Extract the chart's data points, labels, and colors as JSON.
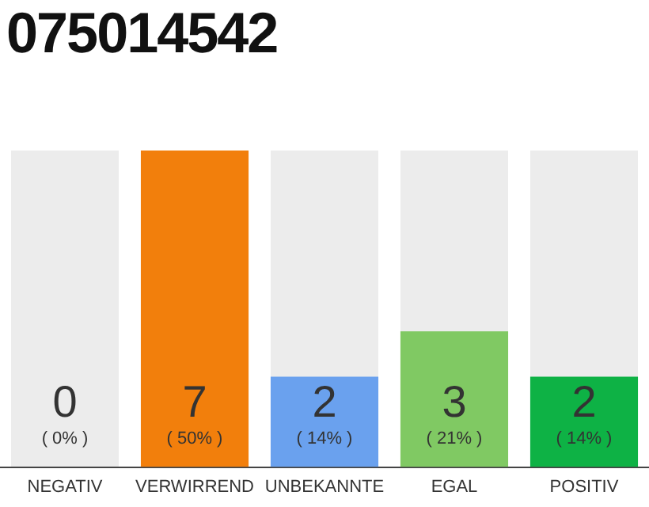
{
  "chart_data": {
    "type": "bar",
    "title": "075014542",
    "categories": [
      "NEGATIV",
      "VERWIRREND",
      "UNBEKANNTE",
      "EGAL",
      "POSITIV"
    ],
    "values": [
      0,
      7,
      2,
      3,
      2
    ],
    "colors": [
      "#c8c8c8",
      "#f27f0c",
      "#6aa1ee",
      "#80c963",
      "#0eb245"
    ],
    "data_labels": true,
    "annotations": [
      "( 0% )",
      "( 50% )",
      "( 14% )",
      "( 21% )",
      "( 14% )"
    ],
    "tick_labels": "x",
    "grid": false,
    "legend": false
  }
}
